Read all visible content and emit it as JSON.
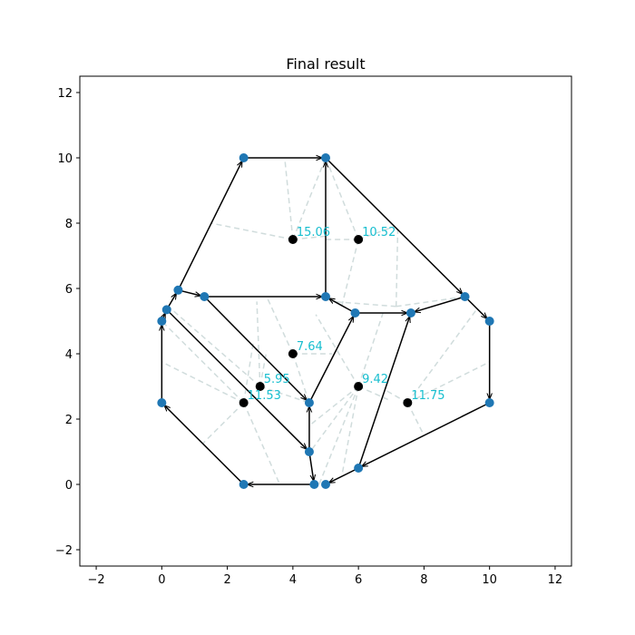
{
  "chart_data": {
    "type": "scatter",
    "title": "Final result",
    "xlabel": "",
    "ylabel": "",
    "xlim": [
      -2.5,
      12.5
    ],
    "ylim": [
      -2.5,
      12.5
    ],
    "xticks": [
      -2,
      0,
      2,
      4,
      6,
      8,
      10,
      12
    ],
    "yticks": [
      -2,
      0,
      2,
      4,
      6,
      8,
      10,
      12
    ],
    "x_tick_labels": [
      "−2",
      "0",
      "2",
      "4",
      "6",
      "8",
      "10",
      "12"
    ],
    "y_tick_labels": [
      "−2",
      "0",
      "2",
      "4",
      "6",
      "8",
      "10",
      "12"
    ],
    "grid": false,
    "node_color": "#1f77b4",
    "edge_color": "#000000",
    "label_color": "#17becf",
    "dashed_color": "#d0dcdc",
    "nodes": [
      [
        2.5,
        10.0
      ],
      [
        5.0,
        10.0
      ],
      [
        0.5,
        5.95
      ],
      [
        1.3,
        5.75
      ],
      [
        5.0,
        5.75
      ],
      [
        0.15,
        5.35
      ],
      [
        0.0,
        5.0
      ],
      [
        5.9,
        5.25
      ],
      [
        7.6,
        5.25
      ],
      [
        9.25,
        5.75
      ],
      [
        10.0,
        5.0
      ],
      [
        0.0,
        2.5
      ],
      [
        10.0,
        2.5
      ],
      [
        4.5,
        2.5
      ],
      [
        4.5,
        1.0
      ],
      [
        6.0,
        0.5
      ],
      [
        2.5,
        0.0
      ],
      [
        4.65,
        0.0
      ],
      [
        5.0,
        0.0
      ]
    ],
    "edges": [
      [
        [
          0.5,
          5.95
        ],
        [
          2.5,
          10.0
        ]
      ],
      [
        [
          2.5,
          10.0
        ],
        [
          5.0,
          10.0
        ]
      ],
      [
        [
          5.0,
          5.75
        ],
        [
          5.0,
          10.0
        ]
      ],
      [
        [
          5.0,
          10.0
        ],
        [
          9.25,
          5.75
        ]
      ],
      [
        [
          9.25,
          5.75
        ],
        [
          10.0,
          5.0
        ]
      ],
      [
        [
          10.0,
          5.0
        ],
        [
          10.0,
          2.5
        ]
      ],
      [
        [
          10.0,
          2.5
        ],
        [
          6.0,
          0.5
        ]
      ],
      [
        [
          6.0,
          0.5
        ],
        [
          7.6,
          5.25
        ]
      ],
      [
        [
          9.25,
          5.75
        ],
        [
          7.6,
          5.25
        ]
      ],
      [
        [
          5.9,
          5.25
        ],
        [
          7.6,
          5.25
        ]
      ],
      [
        [
          5.9,
          5.25
        ],
        [
          5.0,
          5.75
        ]
      ],
      [
        [
          1.3,
          5.75
        ],
        [
          5.0,
          5.75
        ]
      ],
      [
        [
          0.5,
          5.95
        ],
        [
          1.3,
          5.75
        ]
      ],
      [
        [
          0.15,
          5.35
        ],
        [
          0.5,
          5.95
        ]
      ],
      [
        [
          0.0,
          5.0
        ],
        [
          0.15,
          5.35
        ]
      ],
      [
        [
          0.0,
          2.5
        ],
        [
          0.0,
          5.0
        ]
      ],
      [
        [
          2.5,
          0.0
        ],
        [
          0.0,
          2.5
        ]
      ],
      [
        [
          4.65,
          0.0
        ],
        [
          2.5,
          0.0
        ]
      ],
      [
        [
          4.5,
          1.0
        ],
        [
          4.65,
          0.0
        ]
      ],
      [
        [
          4.5,
          1.0
        ],
        [
          4.5,
          2.5
        ]
      ],
      [
        [
          1.3,
          5.75
        ],
        [
          4.5,
          2.5
        ]
      ],
      [
        [
          4.5,
          2.5
        ],
        [
          5.9,
          5.25
        ]
      ],
      [
        [
          0.15,
          5.35
        ],
        [
          4.5,
          1.0
        ]
      ],
      [
        [
          6.0,
          0.5
        ],
        [
          5.0,
          0.0
        ]
      ]
    ],
    "dashed_lines": [
      [
        [
          4.0,
          7.5
        ],
        [
          1.5,
          8.0
        ]
      ],
      [
        [
          4.0,
          7.5
        ],
        [
          3.75,
          10.0
        ]
      ],
      [
        [
          4.0,
          7.5
        ],
        [
          5.0,
          10.0
        ]
      ],
      [
        [
          4.0,
          7.5
        ],
        [
          5.0,
          7.6
        ]
      ],
      [
        [
          6.0,
          7.5
        ],
        [
          5.0,
          10.0
        ]
      ],
      [
        [
          6.0,
          7.5
        ],
        [
          7.1,
          7.9
        ]
      ],
      [
        [
          6.0,
          7.5
        ],
        [
          5.0,
          7.5
        ]
      ],
      [
        [
          6.0,
          7.5
        ],
        [
          5.5,
          5.5
        ]
      ],
      [
        [
          7.15,
          5.45
        ],
        [
          9.25,
          5.75
        ]
      ],
      [
        [
          7.15,
          5.45
        ],
        [
          7.2,
          7.8
        ]
      ],
      [
        [
          7.15,
          5.45
        ],
        [
          5.2,
          5.6
        ]
      ],
      [
        [
          4.0,
          4.0
        ],
        [
          3.2,
          5.75
        ]
      ],
      [
        [
          4.0,
          4.0
        ],
        [
          5.2,
          4.0
        ]
      ],
      [
        [
          4.0,
          4.0
        ],
        [
          4.5,
          2.5
        ]
      ],
      [
        [
          3.0,
          3.0
        ],
        [
          0.2,
          5.45
        ]
      ],
      [
        [
          3.0,
          3.0
        ],
        [
          3.2,
          4.1
        ]
      ],
      [
        [
          3.0,
          3.0
        ],
        [
          2.9,
          5.6
        ]
      ],
      [
        [
          3.0,
          3.0
        ],
        [
          4.5,
          2.5
        ]
      ],
      [
        [
          2.5,
          2.5
        ],
        [
          0.0,
          3.75
        ]
      ],
      [
        [
          2.5,
          2.5
        ],
        [
          1.25,
          1.25
        ]
      ],
      [
        [
          2.5,
          2.5
        ],
        [
          0.0,
          5.0
        ]
      ],
      [
        [
          2.5,
          2.5
        ],
        [
          3.6,
          0.0
        ]
      ],
      [
        [
          2.5,
          2.5
        ],
        [
          2.8,
          4.4
        ]
      ],
      [
        [
          6.0,
          3.0
        ],
        [
          6.75,
          5.25
        ]
      ],
      [
        [
          6.0,
          3.0
        ],
        [
          4.7,
          5.2
        ]
      ],
      [
        [
          6.0,
          3.0
        ],
        [
          4.5,
          1.8
        ]
      ],
      [
        [
          6.0,
          3.0
        ],
        [
          4.8,
          0.0
        ]
      ],
      [
        [
          6.0,
          3.0
        ],
        [
          5.5,
          0.3
        ]
      ],
      [
        [
          6.0,
          3.0
        ],
        [
          4.6,
          1.1
        ]
      ],
      [
        [
          6.0,
          3.0
        ],
        [
          6.9,
          2.6
        ]
      ],
      [
        [
          7.5,
          2.5
        ],
        [
          10.0,
          3.75
        ]
      ],
      [
        [
          7.5,
          2.5
        ],
        [
          8.0,
          1.5
        ]
      ],
      [
        [
          7.5,
          2.5
        ],
        [
          9.6,
          5.35
        ]
      ],
      [
        [
          7.5,
          2.5
        ],
        [
          6.8,
          2.9
        ]
      ]
    ],
    "centers": [
      {
        "x": 4.0,
        "y": 7.5,
        "label": "15.06"
      },
      {
        "x": 6.0,
        "y": 7.5,
        "label": "10.52"
      },
      {
        "x": 4.0,
        "y": 4.0,
        "label": "7.64"
      },
      {
        "x": 3.0,
        "y": 3.0,
        "label": "5.95"
      },
      {
        "x": 2.5,
        "y": 2.5,
        "label": "11.53"
      },
      {
        "x": 6.0,
        "y": 3.0,
        "label": "9.42"
      },
      {
        "x": 7.5,
        "y": 2.5,
        "label": "11.75"
      }
    ]
  }
}
